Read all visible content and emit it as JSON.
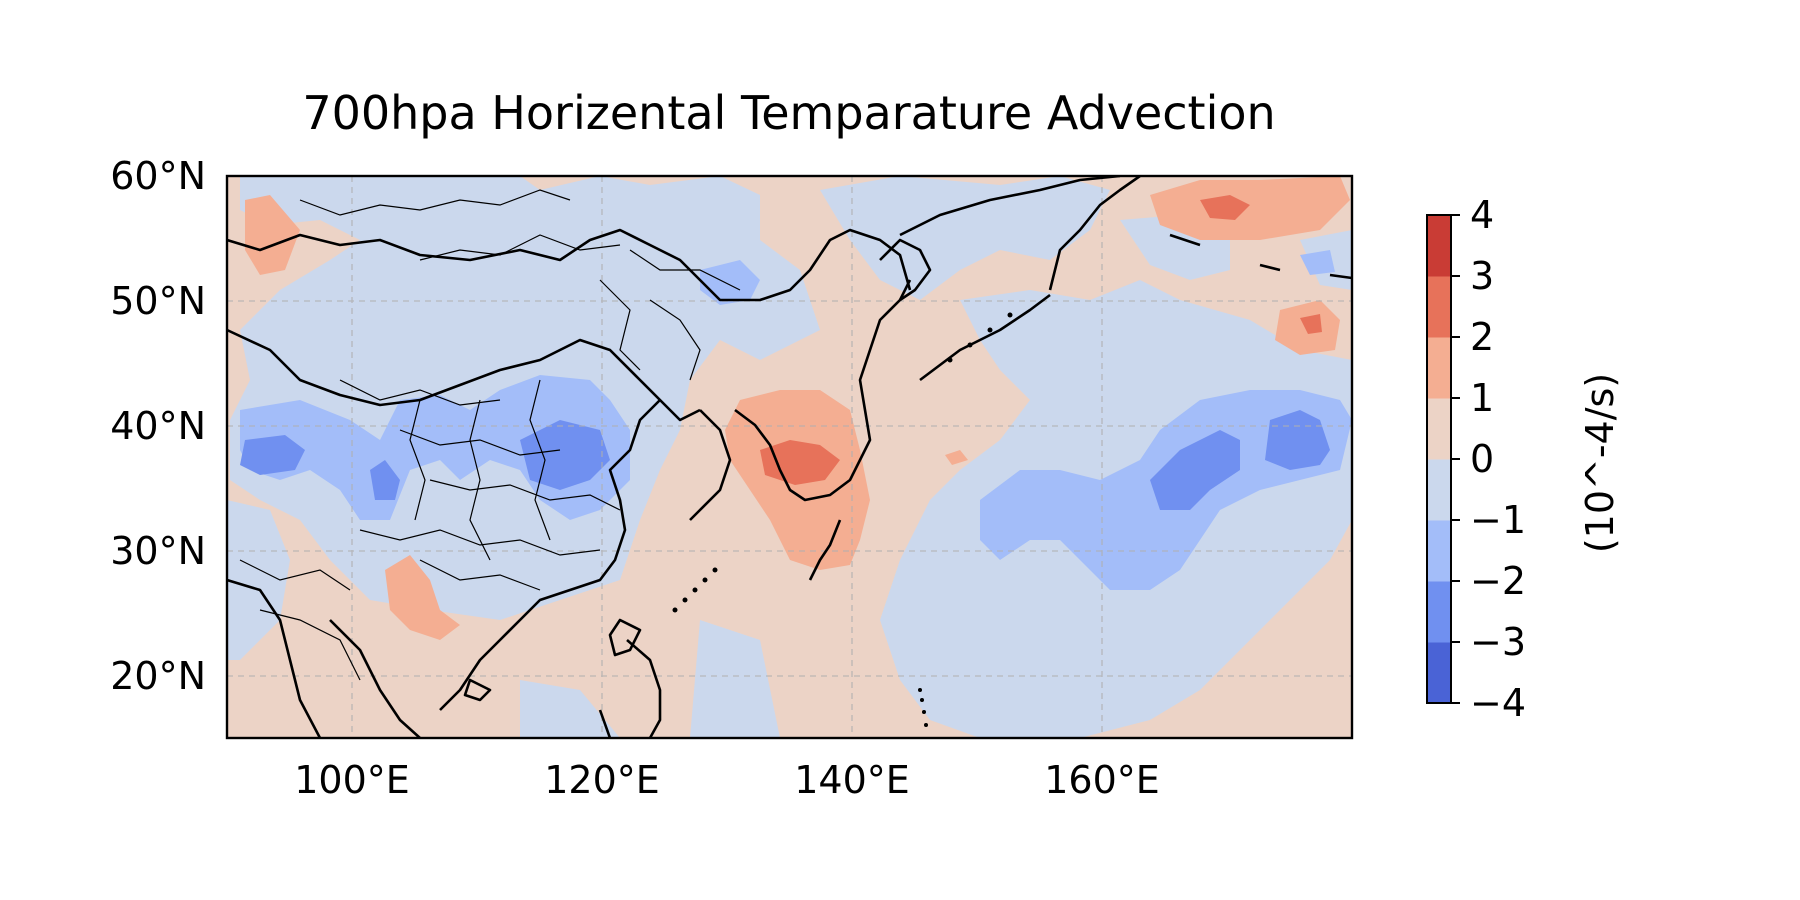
{
  "figure": {
    "title": "700hpa Horizental Temparature Advection",
    "colorbar_label": "(10^-4/s)"
  },
  "map": {
    "lon_range": [
      90,
      180
    ],
    "lat_range": [
      15,
      60
    ],
    "gridlines": true,
    "gridline_style": "dashed",
    "lat_ticks": [
      "60°N",
      "50°N",
      "40°N",
      "30°N",
      "20°N"
    ],
    "lon_ticks": [
      "100°E",
      "120°E",
      "140°E",
      "160°E"
    ],
    "colorbar_ticks": [
      "4",
      "3",
      "2",
      "1",
      "0",
      "−1",
      "−2",
      "−3",
      "−4"
    ],
    "colormap": "coolwarm",
    "levels": [
      -4,
      -3,
      -2,
      -1,
      0,
      1,
      2,
      3,
      4
    ],
    "level_colors": [
      "#4a63d6",
      "#7090f0",
      "#a3bdf9",
      "#cbd8ed",
      "#ecd3c6",
      "#f4ae92",
      "#e7725a",
      "#c93c35"
    ],
    "background_level_color": "#ecd3c6",
    "features": [
      "coastlines",
      "country-borders",
      "province-borders"
    ]
  }
}
